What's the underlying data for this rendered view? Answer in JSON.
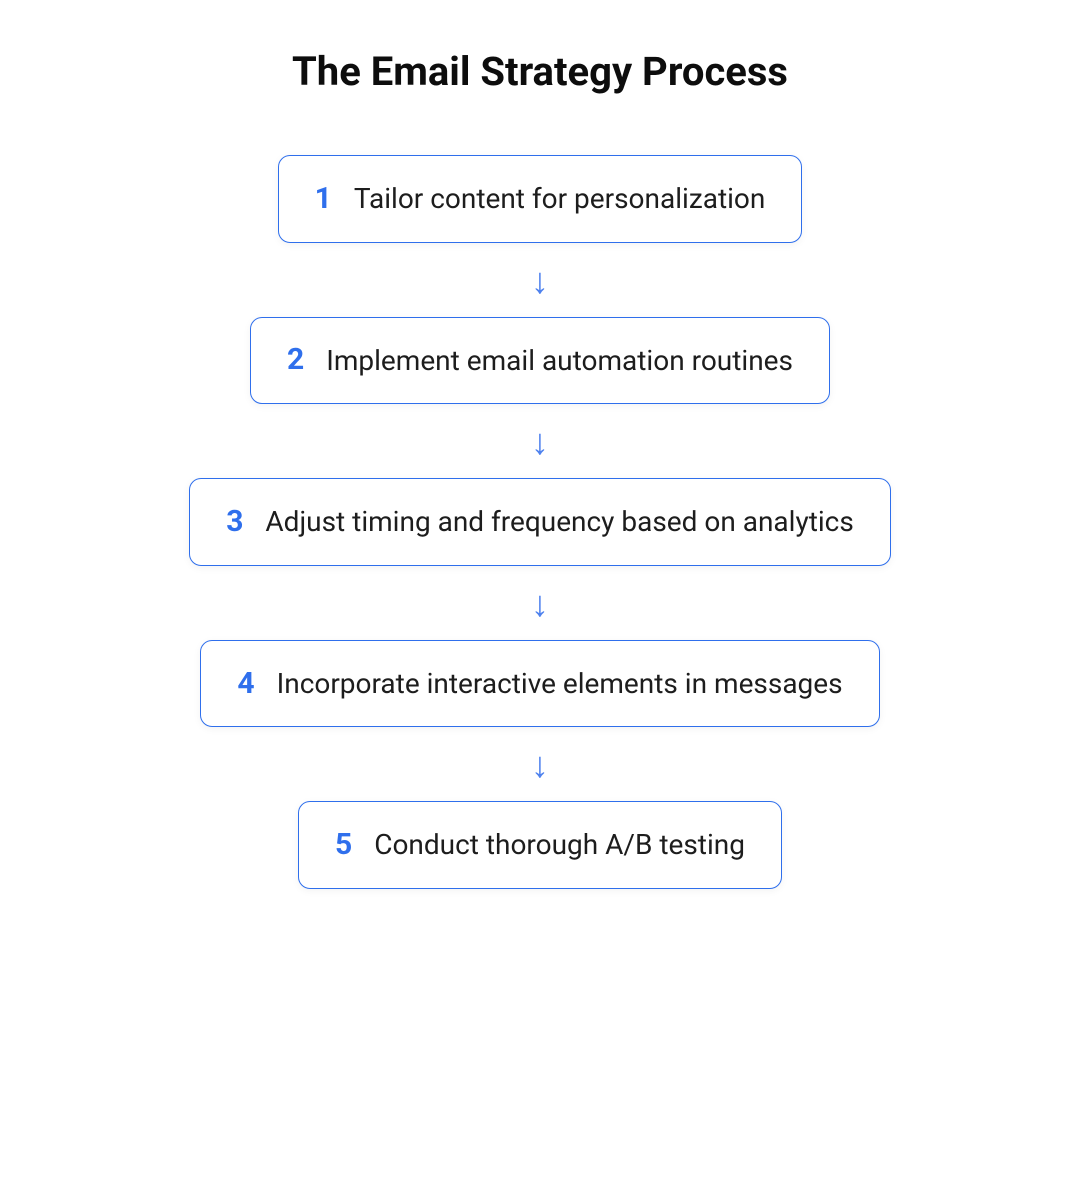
{
  "diagram": {
    "type": "flowchart",
    "title": "The Email Strategy Process",
    "title_fontsize": 40,
    "title_color": "#0d0d0d",
    "background_color": "#ffffff",
    "border_color": "#2f6fec",
    "number_color": "#2f6fec",
    "label_color": "#1d1d1d",
    "arrow_color": "#4f82ee",
    "border_radius": 12,
    "box_padding_v": 26,
    "box_padding_h": 36,
    "number_fontsize": 30,
    "label_fontsize": 28,
    "arrow_glyph": "↓",
    "arrow_fontsize": 36,
    "steps": [
      {
        "n": "1",
        "label": "Tailor content for personalization"
      },
      {
        "n": "2",
        "label": "Implement email automation routines"
      },
      {
        "n": "3",
        "label": "Adjust timing and frequency based on analytics"
      },
      {
        "n": "4",
        "label": "Incorporate interactive elements in messages"
      },
      {
        "n": "5",
        "label": "Conduct thorough A/B testing"
      }
    ]
  }
}
